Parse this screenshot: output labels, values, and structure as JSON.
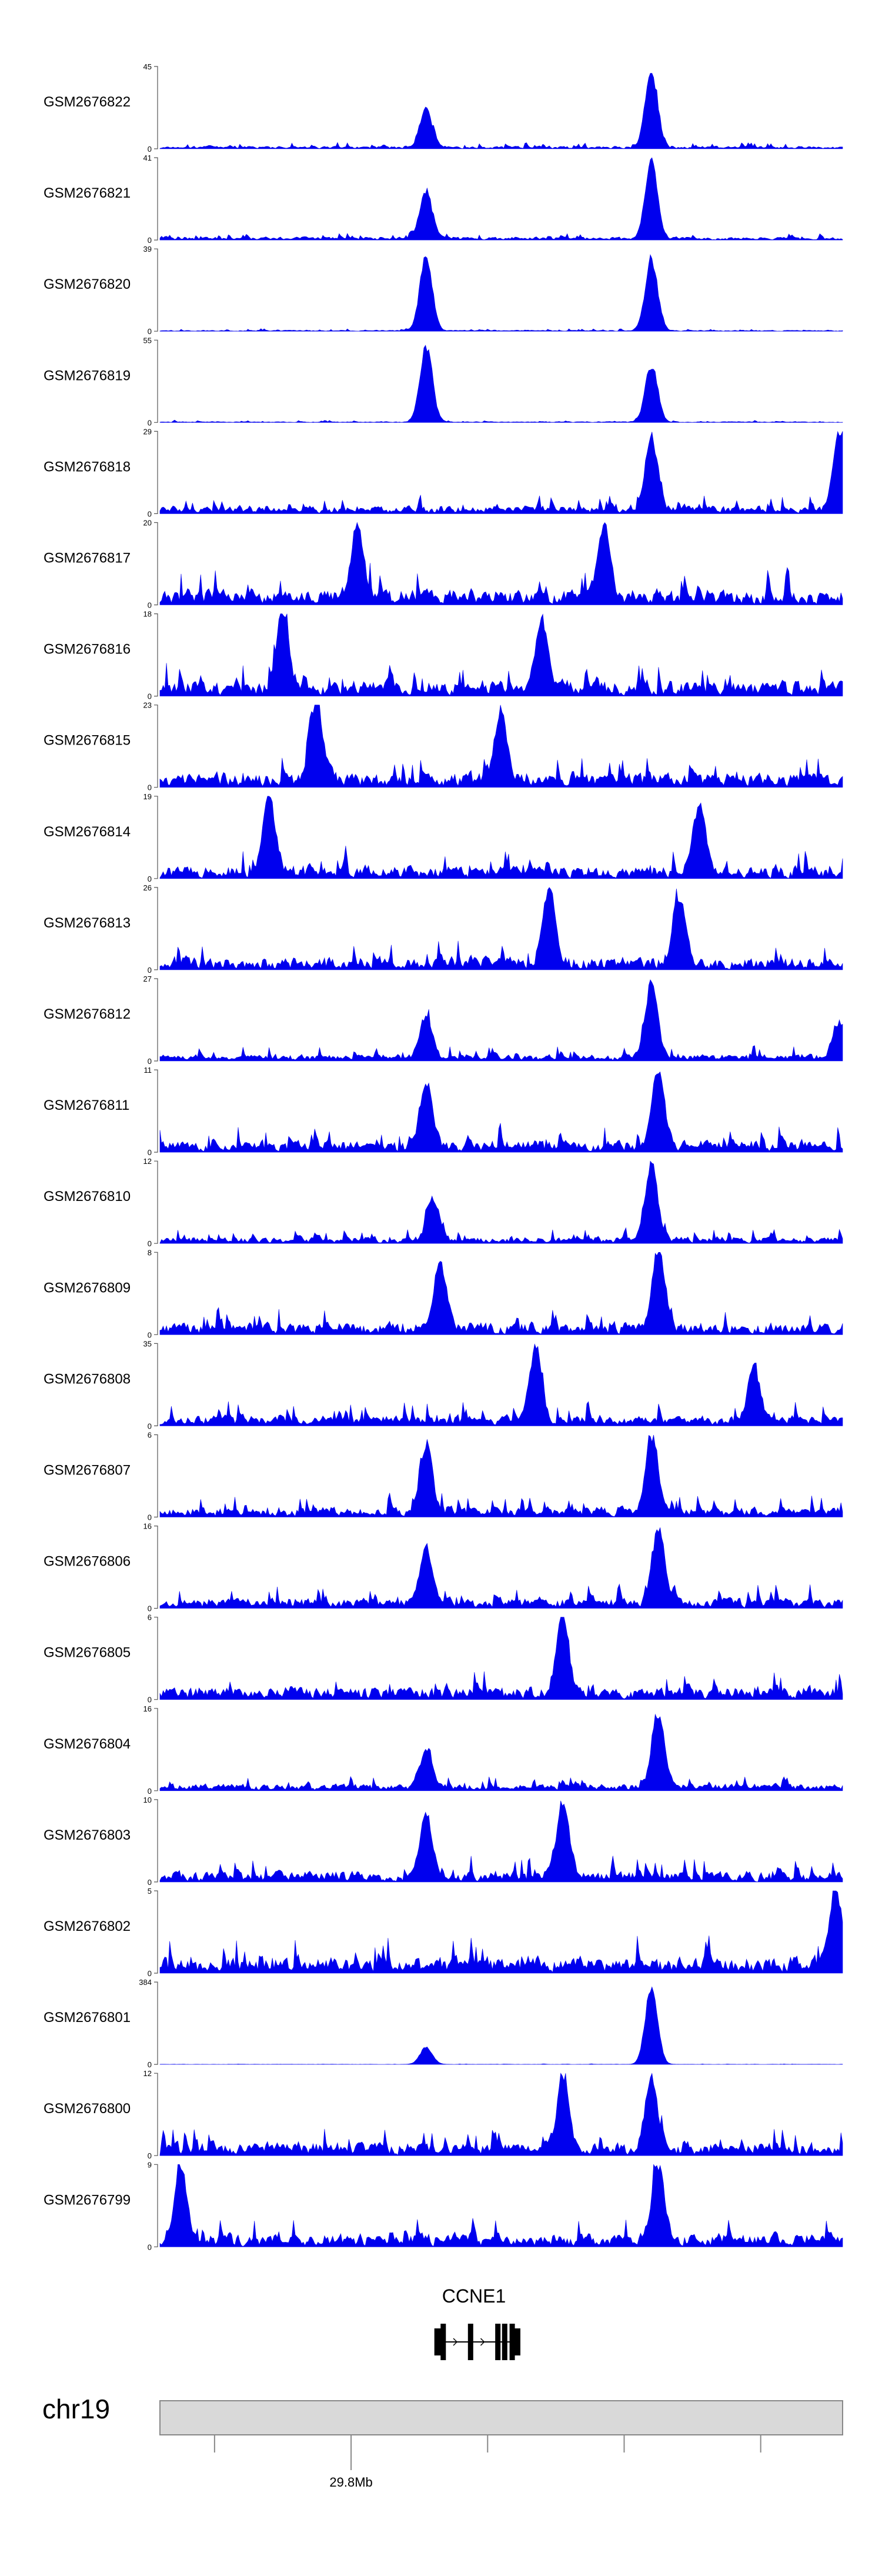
{
  "chart_data": {
    "type": "area",
    "title": "",
    "x_unit": "relative position across locus (0-100)",
    "color": "#0000ee",
    "axis_line_color": "#555555",
    "tracks": [
      {
        "name": "GSM2676822",
        "ymax": "45",
        "ymin": "0",
        "noise": 0.12,
        "peaks": [
          {
            "x": 39,
            "h": 0.5
          },
          {
            "x": 72,
            "h": 1.0
          }
        ]
      },
      {
        "name": "GSM2676821",
        "ymax": "41",
        "ymin": "0",
        "noise": 0.14,
        "peaks": [
          {
            "x": 39,
            "h": 0.62
          },
          {
            "x": 72,
            "h": 1.0
          }
        ]
      },
      {
        "name": "GSM2676820",
        "ymax": "39",
        "ymin": "0",
        "noise": 0.05,
        "peaks": [
          {
            "x": 39,
            "h": 1.0
          },
          {
            "x": 72,
            "h": 0.95
          }
        ]
      },
      {
        "name": "GSM2676819",
        "ymax": "55",
        "ymin": "0",
        "noise": 0.04,
        "peaks": [
          {
            "x": 39,
            "h": 1.0
          },
          {
            "x": 72,
            "h": 0.75
          }
        ]
      },
      {
        "name": "GSM2676818",
        "ymax": "29",
        "ymin": "0",
        "noise": 0.35,
        "peaks": [
          {
            "x": 72,
            "h": 0.95
          },
          {
            "x": 99.5,
            "h": 1.0
          }
        ]
      },
      {
        "name": "GSM2676817",
        "ymax": "20",
        "ymin": "0",
        "noise": 0.7,
        "peaks": [
          {
            "x": 29,
            "h": 1.0
          },
          {
            "x": 65,
            "h": 1.0
          }
        ]
      },
      {
        "name": "GSM2676816",
        "ymax": "18",
        "ymin": "0",
        "noise": 0.7,
        "peaks": [
          {
            "x": 18,
            "h": 1.0
          },
          {
            "x": 56,
            "h": 0.85
          }
        ]
      },
      {
        "name": "GSM2676815",
        "ymax": "23",
        "ymin": "0",
        "noise": 0.65,
        "peaks": [
          {
            "x": 23,
            "h": 1.0
          },
          {
            "x": 50,
            "h": 0.9
          }
        ]
      },
      {
        "name": "GSM2676814",
        "ymax": "19",
        "ymin": "0",
        "noise": 0.6,
        "peaks": [
          {
            "x": 16,
            "h": 1.0
          },
          {
            "x": 79,
            "h": 0.9
          }
        ]
      },
      {
        "name": "GSM2676813",
        "ymax": "26",
        "ymin": "0",
        "noise": 0.6,
        "peaks": [
          {
            "x": 57,
            "h": 1.0
          },
          {
            "x": 76,
            "h": 0.9
          }
        ]
      },
      {
        "name": "GSM2676812",
        "ymax": "27",
        "ymin": "0",
        "noise": 0.3,
        "peaks": [
          {
            "x": 39,
            "h": 0.55
          },
          {
            "x": 72,
            "h": 1.0
          },
          {
            "x": 99.5,
            "h": 0.45
          }
        ]
      },
      {
        "name": "GSM2676811",
        "ymax": "11",
        "ymin": "0",
        "noise": 0.55,
        "peaks": [
          {
            "x": 39,
            "h": 0.85
          },
          {
            "x": 73,
            "h": 1.0
          }
        ]
      },
      {
        "name": "GSM2676810",
        "ymax": "12",
        "ymin": "0",
        "noise": 0.3,
        "peaks": [
          {
            "x": 40,
            "h": 0.55
          },
          {
            "x": 72,
            "h": 1.0
          }
        ]
      },
      {
        "name": "GSM2676809",
        "ymax": "8",
        "ymin": "0",
        "noise": 0.55,
        "peaks": [
          {
            "x": 41,
            "h": 0.9
          },
          {
            "x": 73,
            "h": 1.0
          }
        ]
      },
      {
        "name": "GSM2676808",
        "ymax": "35",
        "ymin": "0",
        "noise": 0.45,
        "peaks": [
          {
            "x": 55,
            "h": 1.0
          },
          {
            "x": 87,
            "h": 0.7
          }
        ]
      },
      {
        "name": "GSM2676807",
        "ymax": "6",
        "ymin": "0",
        "noise": 0.45,
        "peaks": [
          {
            "x": 39,
            "h": 0.9
          },
          {
            "x": 72,
            "h": 1.0
          }
        ]
      },
      {
        "name": "GSM2676806",
        "ymax": "16",
        "ymin": "0",
        "noise": 0.45,
        "peaks": [
          {
            "x": 39,
            "h": 0.75
          },
          {
            "x": 73,
            "h": 1.0
          }
        ]
      },
      {
        "name": "GSM2676805",
        "ymax": "6",
        "ymin": "0",
        "noise": 0.6,
        "peaks": [
          {
            "x": 59,
            "h": 1.0
          }
        ]
      },
      {
        "name": "GSM2676804",
        "ymax": "16",
        "ymin": "0",
        "noise": 0.3,
        "peaks": [
          {
            "x": 39,
            "h": 0.5
          },
          {
            "x": 73,
            "h": 1.0
          }
        ]
      },
      {
        "name": "GSM2676803",
        "ymax": "10",
        "ymin": "0",
        "noise": 0.5,
        "peaks": [
          {
            "x": 39,
            "h": 0.85
          },
          {
            "x": 59,
            "h": 1.0
          }
        ]
      },
      {
        "name": "GSM2676802",
        "ymax": "5",
        "ymin": "0",
        "noise": 0.75,
        "peaks": [
          {
            "x": 99,
            "h": 0.95
          }
        ]
      },
      {
        "name": "GSM2676801",
        "ymax": "384",
        "ymin": "0",
        "noise": 0.01,
        "peaks": [
          {
            "x": 39,
            "h": 0.22
          },
          {
            "x": 72,
            "h": 1.0
          }
        ]
      },
      {
        "name": "GSM2676800",
        "ymax": "12",
        "ymin": "0",
        "noise": 0.6,
        "peaks": [
          {
            "x": 59,
            "h": 0.95
          },
          {
            "x": 72,
            "h": 0.9
          }
        ]
      },
      {
        "name": "GSM2676799",
        "ymax": "9",
        "ymin": "0",
        "noise": 0.6,
        "peaks": [
          {
            "x": 3,
            "h": 1.0
          },
          {
            "x": 73,
            "h": 0.95
          }
        ]
      }
    ],
    "gene": {
      "name": "CCNE1",
      "start": 40.5,
      "end": 52.5,
      "exons": [
        40.8,
        41.5,
        45.5,
        49.5,
        50.5,
        51.6,
        52.2
      ]
    },
    "ideogram": {
      "chromosome": "chr19",
      "ticks": [
        8,
        28,
        48,
        68,
        88
      ],
      "labeled_tick": {
        "pos": 28,
        "label": "29.8Mb"
      }
    }
  }
}
